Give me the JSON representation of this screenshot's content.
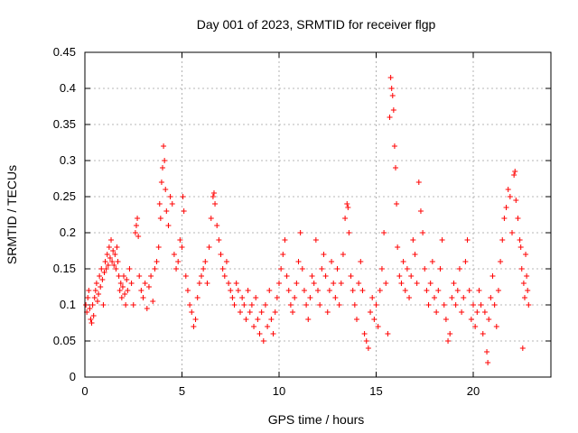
{
  "chart_data": {
    "type": "scatter",
    "title": "Day 001 of 2023, SRMTID for receiver flgp",
    "xlabel": "GPS time / hours",
    "ylabel": "SRMTID / TECUs",
    "xlim": [
      0,
      24
    ],
    "ylim": [
      0,
      0.45
    ],
    "x_ticks": [
      0,
      5,
      10,
      15,
      20
    ],
    "x_tick_labels": [
      "0",
      "5",
      "10",
      "15",
      "20"
    ],
    "y_ticks": [
      0,
      0.05,
      0.1,
      0.15,
      0.2,
      0.25,
      0.3,
      0.35,
      0.4,
      0.45
    ],
    "y_tick_labels": [
      "0",
      "0.05",
      "0.1",
      "0.15",
      "0.2",
      "0.25",
      "0.3",
      "0.35",
      "0.4",
      "0.45"
    ],
    "grid": true,
    "legend": "none",
    "marker": "plus",
    "color": "#ff0000",
    "series": [
      {
        "points": [
          [
            0.05,
            0.1
          ],
          [
            0.1,
            0.09
          ],
          [
            0.15,
            0.11
          ],
          [
            0.2,
            0.12
          ],
          [
            0.25,
            0.095
          ],
          [
            0.3,
            0.08
          ],
          [
            0.35,
            0.075
          ],
          [
            0.4,
            0.1
          ],
          [
            0.45,
            0.085
          ],
          [
            0.5,
            0.11
          ],
          [
            0.55,
            0.12
          ],
          [
            0.6,
            0.13
          ],
          [
            0.65,
            0.105
          ],
          [
            0.7,
            0.115
          ],
          [
            0.75,
            0.14
          ],
          [
            0.8,
            0.125
          ],
          [
            0.85,
            0.15
          ],
          [
            0.9,
            0.135
          ],
          [
            0.95,
            0.1
          ],
          [
            1.0,
            0.145
          ],
          [
            1.05,
            0.16
          ],
          [
            1.1,
            0.15
          ],
          [
            1.15,
            0.17
          ],
          [
            1.2,
            0.155
          ],
          [
            1.25,
            0.18
          ],
          [
            1.3,
            0.165
          ],
          [
            1.35,
            0.19
          ],
          [
            1.4,
            0.16
          ],
          [
            1.45,
            0.175
          ],
          [
            1.5,
            0.155
          ],
          [
            1.55,
            0.17
          ],
          [
            1.6,
            0.15
          ],
          [
            1.65,
            0.18
          ],
          [
            1.7,
            0.16
          ],
          [
            1.75,
            0.14
          ],
          [
            1.8,
            0.12
          ],
          [
            1.85,
            0.13
          ],
          [
            1.9,
            0.11
          ],
          [
            1.95,
            0.125
          ],
          [
            2.0,
            0.14
          ],
          [
            2.05,
            0.115
          ],
          [
            2.1,
            0.1
          ],
          [
            2.15,
            0.135
          ],
          [
            2.2,
            0.12
          ],
          [
            2.3,
            0.15
          ],
          [
            2.4,
            0.13
          ],
          [
            2.5,
            0.1
          ],
          [
            2.6,
            0.2
          ],
          [
            2.65,
            0.21
          ],
          [
            2.7,
            0.22
          ],
          [
            2.75,
            0.195
          ],
          [
            2.8,
            0.14
          ],
          [
            2.9,
            0.12
          ],
          [
            3.0,
            0.11
          ],
          [
            3.1,
            0.13
          ],
          [
            3.2,
            0.095
          ],
          [
            3.3,
            0.125
          ],
          [
            3.4,
            0.14
          ],
          [
            3.5,
            0.105
          ],
          [
            3.6,
            0.15
          ],
          [
            3.7,
            0.16
          ],
          [
            3.8,
            0.18
          ],
          [
            3.85,
            0.24
          ],
          [
            3.9,
            0.22
          ],
          [
            3.95,
            0.27
          ],
          [
            4.0,
            0.29
          ],
          [
            4.05,
            0.32
          ],
          [
            4.1,
            0.3
          ],
          [
            4.15,
            0.26
          ],
          [
            4.2,
            0.23
          ],
          [
            4.3,
            0.21
          ],
          [
            4.4,
            0.25
          ],
          [
            4.5,
            0.24
          ],
          [
            4.6,
            0.17
          ],
          [
            4.7,
            0.15
          ],
          [
            4.8,
            0.16
          ],
          [
            4.9,
            0.19
          ],
          [
            5.0,
            0.18
          ],
          [
            5.05,
            0.25
          ],
          [
            5.1,
            0.23
          ],
          [
            5.2,
            0.14
          ],
          [
            5.3,
            0.12
          ],
          [
            5.4,
            0.1
          ],
          [
            5.5,
            0.09
          ],
          [
            5.6,
            0.07
          ],
          [
            5.7,
            0.08
          ],
          [
            5.8,
            0.11
          ],
          [
            5.9,
            0.13
          ],
          [
            6.0,
            0.14
          ],
          [
            6.1,
            0.15
          ],
          [
            6.2,
            0.16
          ],
          [
            6.3,
            0.13
          ],
          [
            6.4,
            0.18
          ],
          [
            6.5,
            0.22
          ],
          [
            6.6,
            0.25
          ],
          [
            6.65,
            0.255
          ],
          [
            6.7,
            0.24
          ],
          [
            6.8,
            0.21
          ],
          [
            6.9,
            0.19
          ],
          [
            7.0,
            0.17
          ],
          [
            7.1,
            0.15
          ],
          [
            7.2,
            0.14
          ],
          [
            7.3,
            0.16
          ],
          [
            7.4,
            0.13
          ],
          [
            7.5,
            0.12
          ],
          [
            7.6,
            0.11
          ],
          [
            7.7,
            0.1
          ],
          [
            7.8,
            0.13
          ],
          [
            7.9,
            0.12
          ],
          [
            8.0,
            0.09
          ],
          [
            8.1,
            0.11
          ],
          [
            8.2,
            0.1
          ],
          [
            8.3,
            0.08
          ],
          [
            8.4,
            0.12
          ],
          [
            8.5,
            0.09
          ],
          [
            8.6,
            0.1
          ],
          [
            8.7,
            0.07
          ],
          [
            8.8,
            0.11
          ],
          [
            8.9,
            0.08
          ],
          [
            9.0,
            0.06
          ],
          [
            9.1,
            0.09
          ],
          [
            9.2,
            0.05
          ],
          [
            9.3,
            0.1
          ],
          [
            9.4,
            0.07
          ],
          [
            9.5,
            0.12
          ],
          [
            9.6,
            0.08
          ],
          [
            9.7,
            0.06
          ],
          [
            9.8,
            0.09
          ],
          [
            9.9,
            0.11
          ],
          [
            10.0,
            0.13
          ],
          [
            10.1,
            0.15
          ],
          [
            10.2,
            0.17
          ],
          [
            10.3,
            0.19
          ],
          [
            10.4,
            0.14
          ],
          [
            10.5,
            0.12
          ],
          [
            10.6,
            0.1
          ],
          [
            10.7,
            0.09
          ],
          [
            10.8,
            0.11
          ],
          [
            10.9,
            0.13
          ],
          [
            11.0,
            0.16
          ],
          [
            11.1,
            0.2
          ],
          [
            11.2,
            0.15
          ],
          [
            11.3,
            0.12
          ],
          [
            11.4,
            0.1
          ],
          [
            11.5,
            0.08
          ],
          [
            11.6,
            0.11
          ],
          [
            11.7,
            0.14
          ],
          [
            11.8,
            0.13
          ],
          [
            11.9,
            0.19
          ],
          [
            12.0,
            0.12
          ],
          [
            12.1,
            0.1
          ],
          [
            12.2,
            0.15
          ],
          [
            12.3,
            0.17
          ],
          [
            12.4,
            0.14
          ],
          [
            12.5,
            0.09
          ],
          [
            12.6,
            0.12
          ],
          [
            12.7,
            0.16
          ],
          [
            12.8,
            0.13
          ],
          [
            12.9,
            0.11
          ],
          [
            13.0,
            0.15
          ],
          [
            13.1,
            0.1
          ],
          [
            13.2,
            0.13
          ],
          [
            13.3,
            0.17
          ],
          [
            13.4,
            0.22
          ],
          [
            13.5,
            0.24
          ],
          [
            13.55,
            0.235
          ],
          [
            13.6,
            0.2
          ],
          [
            13.7,
            0.14
          ],
          [
            13.8,
            0.12
          ],
          [
            13.9,
            0.1
          ],
          [
            14.0,
            0.08
          ],
          [
            14.1,
            0.13
          ],
          [
            14.2,
            0.16
          ],
          [
            14.3,
            0.12
          ],
          [
            14.4,
            0.06
          ],
          [
            14.5,
            0.05
          ],
          [
            14.6,
            0.04
          ],
          [
            14.7,
            0.09
          ],
          [
            14.8,
            0.11
          ],
          [
            14.9,
            0.08
          ],
          [
            15.0,
            0.1
          ],
          [
            15.1,
            0.07
          ],
          [
            15.2,
            0.12
          ],
          [
            15.3,
            0.15
          ],
          [
            15.4,
            0.2
          ],
          [
            15.5,
            0.13
          ],
          [
            15.6,
            0.06
          ],
          [
            15.7,
            0.36
          ],
          [
            15.75,
            0.415
          ],
          [
            15.8,
            0.4
          ],
          [
            15.85,
            0.39
          ],
          [
            15.9,
            0.37
          ],
          [
            15.95,
            0.32
          ],
          [
            16.0,
            0.29
          ],
          [
            16.05,
            0.24
          ],
          [
            16.1,
            0.18
          ],
          [
            16.2,
            0.14
          ],
          [
            16.3,
            0.13
          ],
          [
            16.4,
            0.16
          ],
          [
            16.5,
            0.12
          ],
          [
            16.6,
            0.15
          ],
          [
            16.7,
            0.11
          ],
          [
            16.8,
            0.14
          ],
          [
            16.9,
            0.19
          ],
          [
            17.0,
            0.17
          ],
          [
            17.1,
            0.13
          ],
          [
            17.2,
            0.27
          ],
          [
            17.3,
            0.23
          ],
          [
            17.4,
            0.2
          ],
          [
            17.5,
            0.15
          ],
          [
            17.6,
            0.12
          ],
          [
            17.7,
            0.1
          ],
          [
            17.8,
            0.13
          ],
          [
            17.9,
            0.16
          ],
          [
            18.0,
            0.11
          ],
          [
            18.1,
            0.09
          ],
          [
            18.2,
            0.12
          ],
          [
            18.3,
            0.15
          ],
          [
            18.4,
            0.19
          ],
          [
            18.5,
            0.1
          ],
          [
            18.6,
            0.08
          ],
          [
            18.7,
            0.05
          ],
          [
            18.8,
            0.06
          ],
          [
            18.9,
            0.11
          ],
          [
            19.0,
            0.13
          ],
          [
            19.1,
            0.1
          ],
          [
            19.2,
            0.12
          ],
          [
            19.3,
            0.15
          ],
          [
            19.4,
            0.09
          ],
          [
            19.5,
            0.11
          ],
          [
            19.6,
            0.16
          ],
          [
            19.7,
            0.19
          ],
          [
            19.8,
            0.12
          ],
          [
            19.9,
            0.08
          ],
          [
            20.0,
            0.1
          ],
          [
            20.1,
            0.07
          ],
          [
            20.2,
            0.09
          ],
          [
            20.3,
            0.12
          ],
          [
            20.4,
            0.1
          ],
          [
            20.5,
            0.06
          ],
          [
            20.6,
            0.09
          ],
          [
            20.7,
            0.035
          ],
          [
            20.75,
            0.02
          ],
          [
            20.8,
            0.08
          ],
          [
            20.9,
            0.11
          ],
          [
            21.0,
            0.14
          ],
          [
            21.1,
            0.1
          ],
          [
            21.2,
            0.07
          ],
          [
            21.3,
            0.12
          ],
          [
            21.4,
            0.16
          ],
          [
            21.5,
            0.19
          ],
          [
            21.6,
            0.22
          ],
          [
            21.7,
            0.235
          ],
          [
            21.8,
            0.26
          ],
          [
            21.9,
            0.25
          ],
          [
            22.0,
            0.2
          ],
          [
            22.1,
            0.28
          ],
          [
            22.15,
            0.285
          ],
          [
            22.2,
            0.245
          ],
          [
            22.3,
            0.22
          ],
          [
            22.4,
            0.19
          ],
          [
            22.45,
            0.18
          ],
          [
            22.5,
            0.15
          ],
          [
            22.55,
            0.04
          ],
          [
            22.6,
            0.13
          ],
          [
            22.65,
            0.11
          ],
          [
            22.7,
            0.17
          ],
          [
            22.75,
            0.14
          ],
          [
            22.8,
            0.12
          ],
          [
            22.85,
            0.1
          ]
        ]
      }
    ]
  }
}
